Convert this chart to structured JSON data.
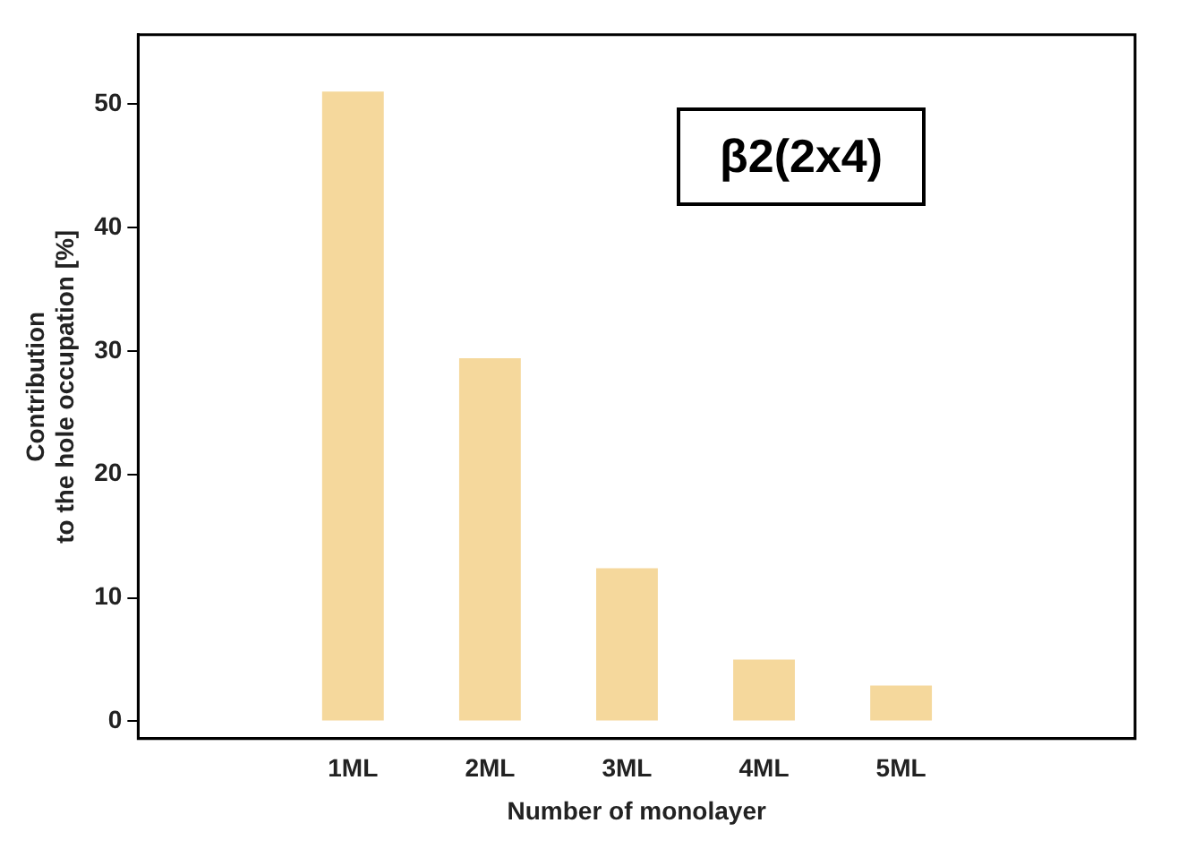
{
  "chart_data": {
    "type": "bar",
    "xlabel": "Number of monolayer",
    "ylabel": "Contribution\nto the hole occupation [%]",
    "categories": [
      "1ML",
      "2ML",
      "3ML",
      "4ML",
      "5ML"
    ],
    "values": [
      51,
      29.4,
      12.4,
      5,
      2.9
    ],
    "color": "#f5d89c",
    "ylim": [
      -1.4,
      55.6
    ],
    "yticks": [
      0,
      10,
      20,
      30,
      40,
      50
    ],
    "grid": false,
    "legend": false,
    "annotations": [
      "β2(2x4)"
    ]
  }
}
